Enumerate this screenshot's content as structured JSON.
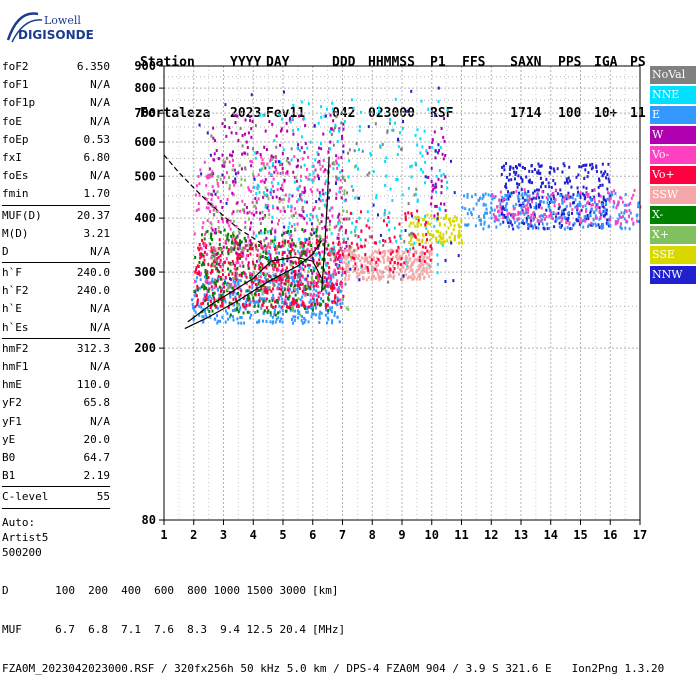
{
  "logo": {
    "line1": "Lowell",
    "line2": "DIGISONDE",
    "color": "#1a3c8f"
  },
  "header": {
    "labels": [
      "Station",
      "YYYY",
      "DAY",
      "DDD",
      "HHMMSS",
      "P1",
      "FFS",
      "S",
      "AXN",
      "PPS",
      "IGA",
      "PS"
    ],
    "values": [
      "Fortaleza",
      "2023",
      "Fev11",
      "042",
      "023000",
      "RSF",
      "",
      "1",
      "714",
      "100",
      "10+",
      "11"
    ]
  },
  "params_group1": [
    {
      "name": "foF2",
      "value": "6.350"
    },
    {
      "name": "foF1",
      "value": "N/A"
    },
    {
      "name": "foF1p",
      "value": "N/A"
    },
    {
      "name": "foE",
      "value": "N/A"
    },
    {
      "name": "foEp",
      "value": "0.53"
    },
    {
      "name": "fxI",
      "value": "6.80"
    },
    {
      "name": "foEs",
      "value": "N/A"
    },
    {
      "name": "fmin",
      "value": "1.70"
    }
  ],
  "params_group2": [
    {
      "name": "MUF(D)",
      "value": "20.37"
    },
    {
      "name": "M(D)",
      "value": "3.21"
    },
    {
      "name": "D",
      "value": "N/A"
    }
  ],
  "params_group3": [
    {
      "name": "h`F",
      "value": "240.0"
    },
    {
      "name": "h`F2",
      "value": "240.0"
    },
    {
      "name": "h`E",
      "value": "N/A"
    },
    {
      "name": "h`Es",
      "value": "N/A"
    }
  ],
  "params_group4": [
    {
      "name": "hmF2",
      "value": "312.3"
    },
    {
      "name": "hmF1",
      "value": "N/A"
    },
    {
      "name": "hmE",
      "value": "110.0"
    },
    {
      "name": "yF2",
      "value": "65.8"
    },
    {
      "name": "yF1",
      "value": "N/A"
    },
    {
      "name": "yE",
      "value": "20.0"
    },
    {
      "name": "B0",
      "value": "64.7"
    },
    {
      "name": "B1",
      "value": "2.19"
    }
  ],
  "params_group5": [
    {
      "name": "C-level",
      "value": "55"
    }
  ],
  "auto": {
    "line1": "Auto:",
    "line2": "Artist5",
    "line3": "500200"
  },
  "legend": [
    {
      "label": "NoVal",
      "color": "#808080"
    },
    {
      "label": "NNE",
      "color": "#00e0ff"
    },
    {
      "label": "E",
      "color": "#3399ff"
    },
    {
      "label": "W",
      "color": "#b000b0"
    },
    {
      "label": "Vo-",
      "color": "#ff40c0"
    },
    {
      "label": "Vo+",
      "color": "#ff0040"
    },
    {
      "label": "SSW",
      "color": "#f4a8a8"
    },
    {
      "label": "X-",
      "color": "#008000"
    },
    {
      "label": "X+",
      "color": "#80c060"
    },
    {
      "label": "SSE",
      "color": "#d8d800"
    },
    {
      "label": "NNW",
      "color": "#2020d0"
    }
  ],
  "footer": {
    "d_label": "D",
    "d_values": [
      "100",
      "200",
      "400",
      "600",
      "800",
      "1000",
      "1500",
      "3000"
    ],
    "d_unit": "[km]",
    "muf_label": "MUF",
    "muf_values": [
      "6.7",
      "6.8",
      "7.1",
      "7.6",
      "8.3",
      "9.4",
      "12.5",
      "20.4"
    ],
    "muf_unit": "[MHz]",
    "file_line": "FZA0M_2023042023000.RSF / 320fx256h 50 kHz 5.0 km / DPS-4 FZA0M 904 / 3.9 S 321.6 E",
    "version": "Ion2Png 1.3.20"
  },
  "chart_data": {
    "type": "scatter",
    "xlim": [
      1,
      17
    ],
    "ylim": [
      80,
      900
    ],
    "y_scale": "log",
    "x_ticks": [
      1,
      2,
      3,
      4,
      5,
      6,
      7,
      8,
      9,
      10,
      11,
      12,
      13,
      14,
      15,
      16,
      17
    ],
    "y_ticks": [
      80,
      200,
      300,
      400,
      500,
      600,
      700,
      800,
      900
    ],
    "grid": true,
    "legend_placement": "right",
    "series": [
      {
        "name": "F2 trace",
        "color": "#000000",
        "style": "solid",
        "points": [
          [
            1.7,
            222
          ],
          [
            2.5,
            236
          ],
          [
            3.5,
            258
          ],
          [
            4.5,
            285
          ],
          [
            5.5,
            310
          ],
          [
            6.0,
            330
          ],
          [
            6.3,
            355
          ]
        ]
      },
      {
        "name": "F2 virtual",
        "color": "#000000",
        "style": "solid",
        "points": [
          [
            1.8,
            230
          ],
          [
            2.5,
            250
          ],
          [
            3.2,
            268
          ],
          [
            4.0,
            290
          ],
          [
            4.6,
            318
          ],
          [
            5.4,
            325
          ],
          [
            6.0,
            318
          ],
          [
            6.3,
            290
          ]
        ]
      },
      {
        "name": "E layer",
        "color": "#000000",
        "style": "dashed",
        "points": [
          [
            1.0,
            560
          ],
          [
            1.5,
            510
          ],
          [
            2.0,
            470
          ],
          [
            2.5,
            435
          ],
          [
            3.0,
            405
          ],
          [
            3.5,
            378
          ],
          [
            4.0,
            360
          ],
          [
            4.3,
            348
          ]
        ]
      },
      {
        "name": "cusp",
        "color": "#000000",
        "style": "solid",
        "points": [
          [
            6.3,
            270
          ],
          [
            6.4,
            340
          ],
          [
            6.5,
            450
          ],
          [
            6.55,
            555
          ]
        ]
      }
    ],
    "clusters": [
      {
        "color": "#3399ff",
        "x": [
          1.9,
          7.0
        ],
        "y": [
          230,
          300
        ],
        "n": 420
      },
      {
        "color": "#ff0040",
        "x": [
          2.0,
          7.0
        ],
        "y": [
          250,
          360
        ],
        "n": 520
      },
      {
        "color": "#ff40c0",
        "x": [
          2.0,
          7.0
        ],
        "y": [
          260,
          560
        ],
        "n": 360
      },
      {
        "color": "#b000b0",
        "x": [
          2.5,
          7.2
        ],
        "y": [
          300,
          700
        ],
        "n": 260
      },
      {
        "color": "#008000",
        "x": [
          2.0,
          6.5
        ],
        "y": [
          240,
          380
        ],
        "n": 240
      },
      {
        "color": "#80c060",
        "x": [
          2.5,
          7.5
        ],
        "y": [
          240,
          560
        ],
        "n": 120
      },
      {
        "color": "#808080",
        "x": [
          2.5,
          9.5
        ],
        "y": [
          280,
          700
        ],
        "n": 120
      },
      {
        "color": "#00e0ff",
        "x": [
          4.0,
          10.5
        ],
        "y": [
          300,
          760
        ],
        "n": 260
      },
      {
        "color": "#f4a8a8",
        "x": [
          7.0,
          10.0
        ],
        "y": [
          290,
          340
        ],
        "n": 300
      },
      {
        "color": "#d8d800",
        "x": [
          9.2,
          11.0
        ],
        "y": [
          350,
          410
        ],
        "n": 110
      },
      {
        "color": "#2020d0",
        "x": [
          12.3,
          16.0
        ],
        "y": [
          380,
          540
        ],
        "n": 320
      },
      {
        "color": "#3399ff",
        "x": [
          11.0,
          17.0
        ],
        "y": [
          380,
          460
        ],
        "n": 260
      },
      {
        "color": "#ff40c0",
        "x": [
          12.0,
          17.0
        ],
        "y": [
          390,
          470
        ],
        "n": 140
      },
      {
        "color": "#b000b0",
        "x": [
          9.8,
          10.5
        ],
        "y": [
          400,
          700
        ],
        "n": 40
      },
      {
        "color": "#2020d0",
        "x": [
          2.0,
          11.0
        ],
        "y": [
          280,
          820
        ],
        "n": 60
      },
      {
        "color": "#ff0040",
        "x": [
          7.0,
          10.0
        ],
        "y": [
          300,
          420
        ],
        "n": 90
      }
    ]
  }
}
